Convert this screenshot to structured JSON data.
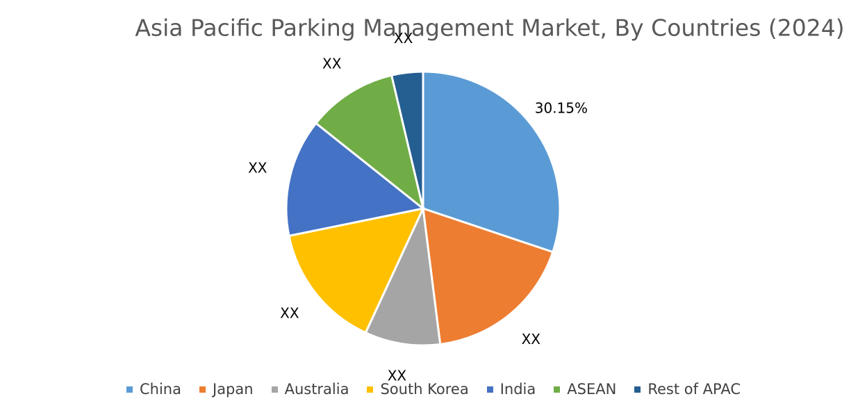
{
  "chart_data": {
    "type": "pie",
    "title": "Asia Pacific Parking Management Market, By Countries (2024)",
    "categories": [
      "China",
      "Japan",
      "Australia",
      "South Korea",
      "India",
      "ASEAN",
      "Rest of APAC"
    ],
    "values": [
      30.15,
      17.85,
      8.9,
      14.9,
      13.9,
      10.6,
      3.7
    ],
    "value_labels": [
      "30.15%",
      "XX",
      "XX",
      "XX",
      "XX",
      "XX",
      "XX"
    ],
    "colors": [
      "#5b9bd5",
      "#ed7d31",
      "#a5a5a5",
      "#ffc000",
      "#4472c4",
      "#70ad47",
      "#255e91"
    ],
    "legend": "bottom"
  }
}
